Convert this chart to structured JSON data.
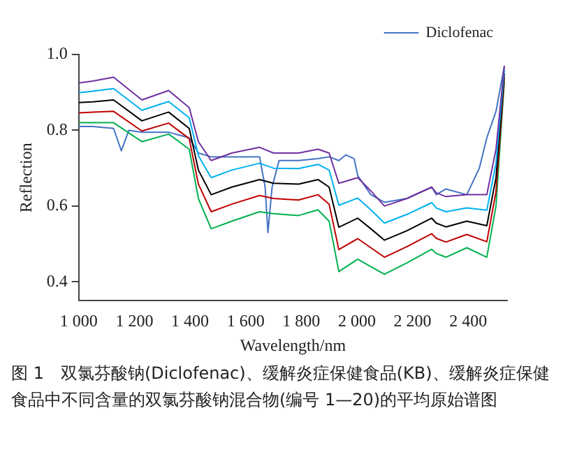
{
  "chart_data": {
    "type": "line",
    "xlabel": "Wavelength/nm",
    "ylabel": "Reflection",
    "annotations": [
      "图 1　双氯芬酸钠(Diclofenac)、缓解炎症保健食品(KB)、缓解炎症保健食品中不同含量的双氯芬酸钠混合物(编号 1—20)的平均原始谱图"
    ],
    "x": [
      1000,
      1050,
      1125,
      1227,
      1323,
      1397,
      1430,
      1476,
      1550,
      1650,
      1700,
      1790,
      1860,
      1900,
      1935,
      2003,
      2050,
      2099,
      2180,
      2269,
      2285,
      2320,
      2395,
      2467,
      2500,
      2530
    ],
    "series": [
      {
        "color": "#7030a0",
        "values": [
          0.925,
          0.93,
          0.94,
          0.88,
          0.905,
          0.86,
          0.77,
          0.72,
          0.74,
          0.755,
          0.74,
          0.74,
          0.75,
          0.74,
          0.66,
          0.675,
          0.64,
          0.6,
          0.62,
          0.65,
          0.635,
          0.625,
          0.63,
          0.63,
          0.75,
          0.97
        ]
      },
      {
        "color": "#00b0f0",
        "values": [
          0.899,
          0.903,
          0.91,
          0.853,
          0.876,
          0.833,
          0.733,
          0.675,
          0.695,
          0.713,
          0.7,
          0.699,
          0.71,
          0.695,
          0.602,
          0.621,
          0.59,
          0.555,
          0.578,
          0.609,
          0.595,
          0.585,
          0.595,
          0.589,
          0.713,
          0.96
        ]
      },
      {
        "color": "#000000",
        "values": [
          0.873,
          0.875,
          0.88,
          0.825,
          0.848,
          0.805,
          0.695,
          0.63,
          0.65,
          0.67,
          0.66,
          0.658,
          0.67,
          0.65,
          0.544,
          0.568,
          0.54,
          0.51,
          0.535,
          0.568,
          0.555,
          0.545,
          0.56,
          0.548,
          0.675,
          0.95
        ]
      },
      {
        "color": "#c00000",
        "values": [
          0.846,
          0.848,
          0.85,
          0.798,
          0.819,
          0.778,
          0.658,
          0.585,
          0.605,
          0.628,
          0.62,
          0.616,
          0.63,
          0.605,
          0.485,
          0.514,
          0.49,
          0.465,
          0.493,
          0.527,
          0.515,
          0.505,
          0.525,
          0.506,
          0.638,
          0.94
        ]
      },
      {
        "color": "#00b050",
        "values": [
          0.82,
          0.82,
          0.82,
          0.77,
          0.79,
          0.75,
          0.62,
          0.54,
          0.56,
          0.585,
          0.58,
          0.575,
          0.59,
          0.56,
          0.427,
          0.46,
          0.44,
          0.42,
          0.45,
          0.486,
          0.475,
          0.465,
          0.49,
          0.465,
          0.6,
          0.93
        ]
      },
      {
        "name": "Diclofenac",
        "color": "#4472c4",
        "x": [
          1000,
          1050,
          1125,
          1153,
          1180,
          1227,
          1323,
          1397,
          1430,
          1476,
          1550,
          1650,
          1670,
          1680,
          1695,
          1720,
          1790,
          1860,
          1900,
          1935,
          1960,
          1990,
          2003,
          2050,
          2099,
          2180,
          2269,
          2285,
          2320,
          2395,
          2440,
          2467,
          2500,
          2530
        ],
        "values": [
          0.81,
          0.81,
          0.805,
          0.746,
          0.8,
          0.795,
          0.795,
          0.78,
          0.74,
          0.73,
          0.73,
          0.73,
          0.65,
          0.53,
          0.65,
          0.72,
          0.72,
          0.725,
          0.73,
          0.72,
          0.735,
          0.725,
          0.68,
          0.63,
          0.61,
          0.62,
          0.65,
          0.63,
          0.645,
          0.63,
          0.7,
          0.78,
          0.85,
          0.97
        ]
      }
    ],
    "xlim": [
      1000,
      2540
    ],
    "xticks": [
      {
        "value": 1000,
        "label": "1 000"
      },
      {
        "value": 1200,
        "label": "1 200"
      },
      {
        "value": 1400,
        "label": "1 400"
      },
      {
        "value": 1600,
        "label": "1 600"
      },
      {
        "value": 1800,
        "label": "1 800"
      },
      {
        "value": 2000,
        "label": "2 000"
      },
      {
        "value": 2200,
        "label": "2 200"
      },
      {
        "value": 2400,
        "label": "2 400"
      }
    ],
    "ylim": [
      0.35,
      1.0
    ],
    "yticks": [
      0.4,
      0.6,
      0.8,
      {
        "value": 1,
        "label": "1.0"
      }
    ],
    "grid": false,
    "legend": "top right",
    "marker": "none",
    "line_style": "solid"
  }
}
